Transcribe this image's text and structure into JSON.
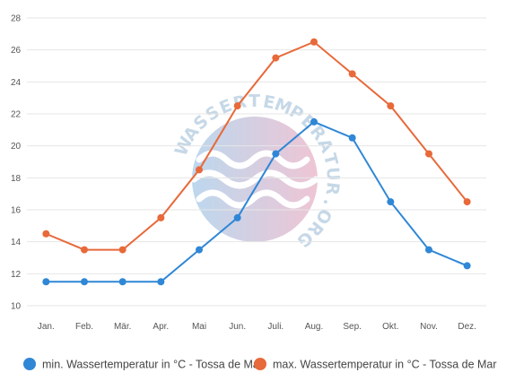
{
  "chart_data": {
    "type": "line",
    "categories": [
      "Jan.",
      "Feb.",
      "Mär.",
      "Apr.",
      "Mai",
      "Jun.",
      "Juli.",
      "Aug.",
      "Sep.",
      "Okt.",
      "Nov.",
      "Dez."
    ],
    "ylim": [
      10,
      28
    ],
    "yticks": [
      "10",
      "12",
      "14",
      "16",
      "18",
      "20",
      "22",
      "24",
      "26",
      "28"
    ],
    "grid": true,
    "legend_position": "bottom",
    "series": [
      {
        "name": "min. Wassertemperatur in °C - Tossa de Mar",
        "color": "#2f87d6",
        "values": [
          11.5,
          11.5,
          11.5,
          11.5,
          13.5,
          15.5,
          19.5,
          21.5,
          20.5,
          16.5,
          13.5,
          12.5
        ]
      },
      {
        "name": "max. Wassertemperatur in °C - Tossa de Mar",
        "color": "#e8693a",
        "values": [
          14.5,
          13.5,
          13.5,
          15.5,
          18.5,
          22.5,
          25.5,
          26.5,
          24.5,
          22.5,
          19.5,
          16.5
        ]
      }
    ]
  },
  "watermark": {
    "text": "WASSERTEMPERATUR.ORG"
  }
}
